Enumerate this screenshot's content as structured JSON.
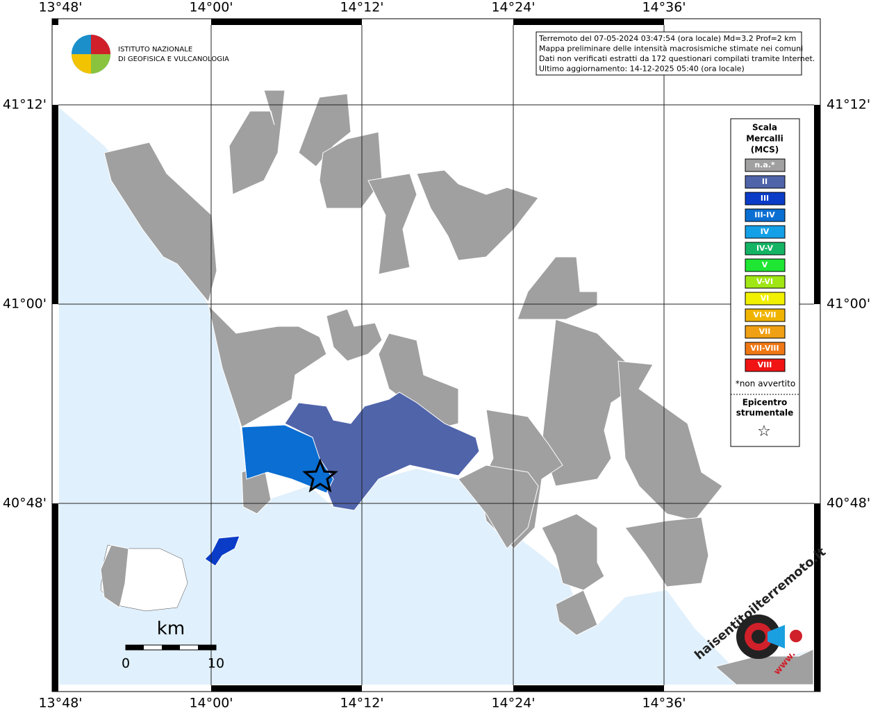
{
  "map": {
    "longitude_labels": [
      "13°48'",
      "14°00'",
      "14°12'",
      "14°24'",
      "14°36'"
    ],
    "latitude_labels": [
      "41°12'",
      "41°00'",
      "40°48'"
    ],
    "info_box": [
      "Terremoto del 07-05-2024 03:47:54 (ora locale) Md=3.2 Prof=2 km",
      "Mappa preliminare delle intensità macrosismiche stimate nei comuni",
      "Dati non verificati estratti da 172 questionari compilati tramite Internet.",
      "Ultimo aggiornamento: 14-12-2025 05:40 (ora locale)"
    ],
    "institute": [
      "ISTITUTO NAZIONALE",
      "DI GEOFISICA E VULCANOLOGIA"
    ],
    "legend": {
      "title": [
        "Scala",
        "Mercalli",
        "(MCS)"
      ],
      "items": [
        {
          "label": "n.a.*",
          "color": "#a0a0a0"
        },
        {
          "label": "II",
          "color": "#5064aa"
        },
        {
          "label": "III",
          "color": "#0a3cc8"
        },
        {
          "label": "III-IV",
          "color": "#0a6ed2"
        },
        {
          "label": "IV",
          "color": "#14a0e6"
        },
        {
          "label": "IV-V",
          "color": "#14b464"
        },
        {
          "label": "V",
          "color": "#1ee632"
        },
        {
          "label": "V-VI",
          "color": "#a0e614"
        },
        {
          "label": "VI",
          "color": "#f0f000"
        },
        {
          "label": "VI-VII",
          "color": "#f0b400"
        },
        {
          "label": "VII",
          "color": "#f0a014"
        },
        {
          "label": "VII-VIII",
          "color": "#f07814"
        },
        {
          "label": "VIII",
          "color": "#f01414"
        }
      ],
      "note": "*non avvertito",
      "epicenter": [
        "Epicentro",
        "strumentale"
      ],
      "star": "☆"
    },
    "scale_bar": {
      "unit": "km",
      "labels": [
        "0",
        "10"
      ]
    },
    "site_logo": {
      "name": "haisentitoilterremoto.it",
      "prefix": "www."
    }
  }
}
